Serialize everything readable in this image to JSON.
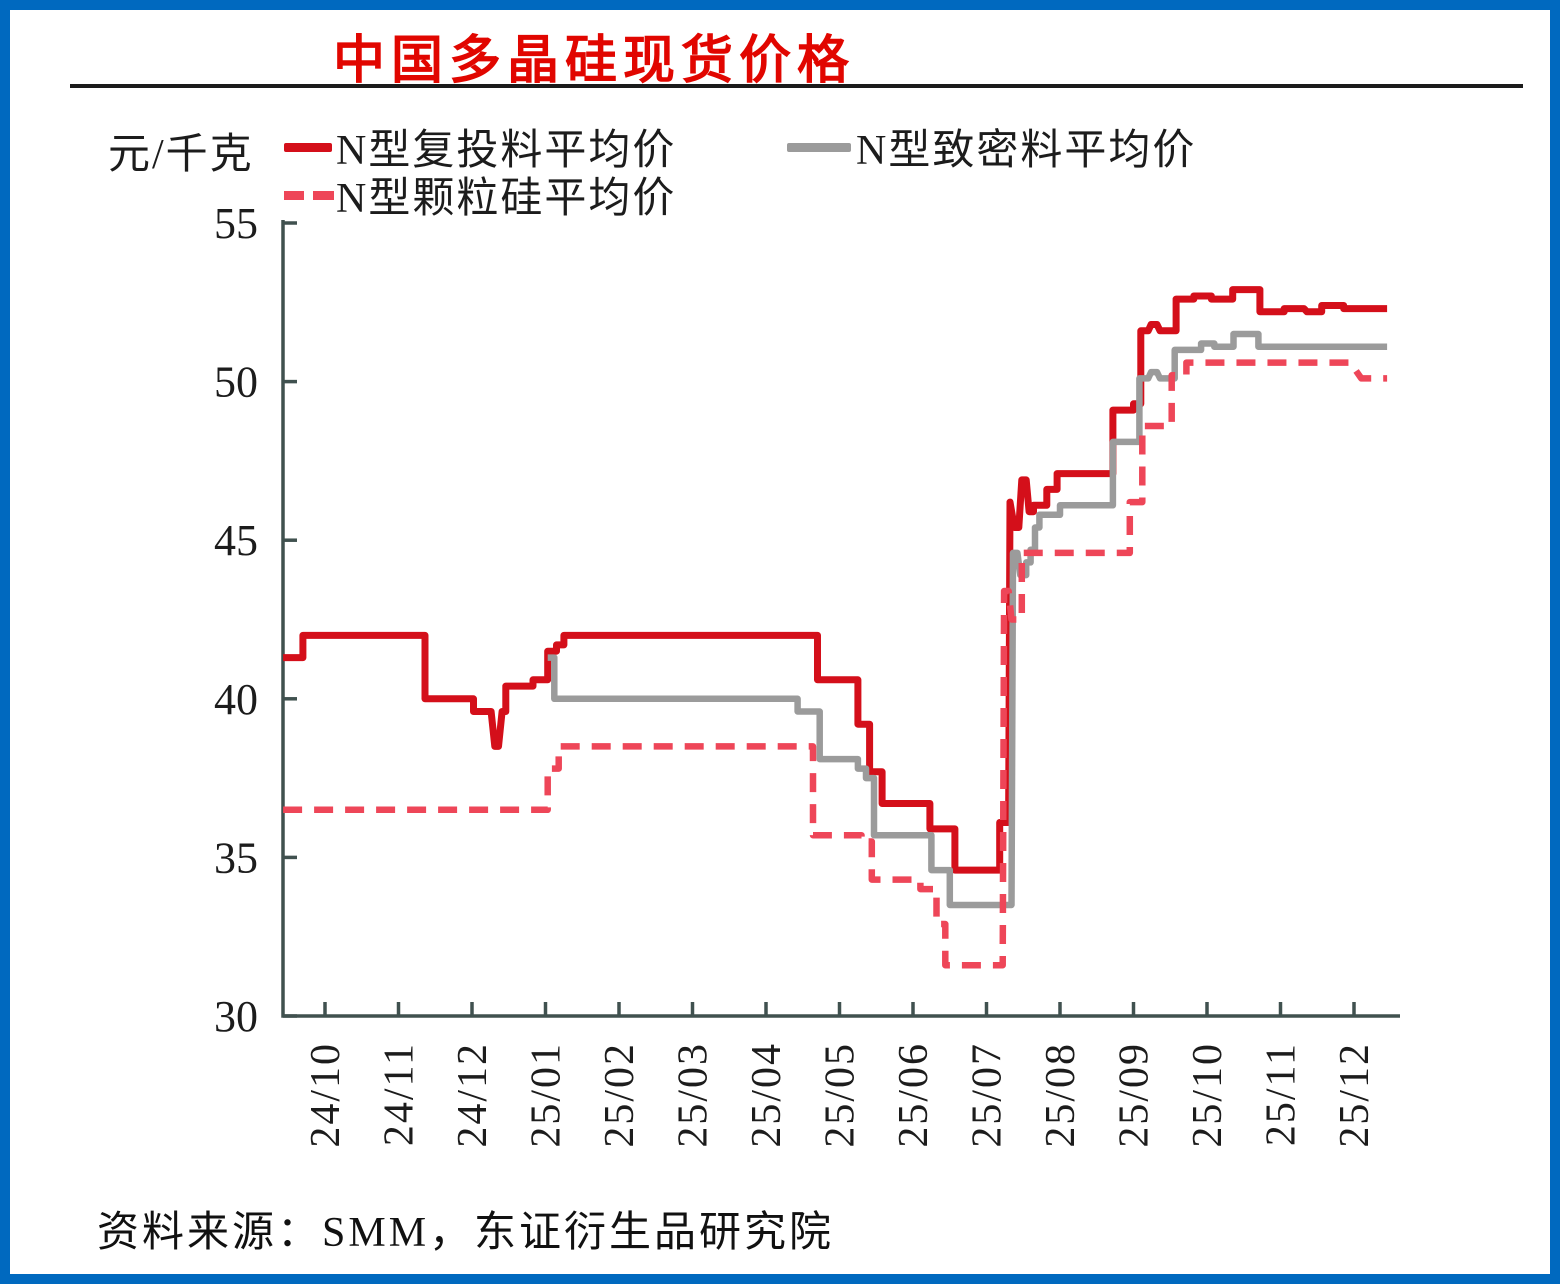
{
  "header": {
    "title": "中国多晶硅现货价格",
    "title_color": "#e10600"
  },
  "frame": {
    "border_color": "#0069bf"
  },
  "footer": {
    "source": "资料来源：SMM，东证衍生品研究院"
  },
  "chart_data": {
    "type": "line",
    "title": "中国多晶硅现货价格",
    "unit_label": "元/千克",
    "ylabel": "元/千克",
    "ylim": [
      30,
      55
    ],
    "yticks": [
      55,
      50,
      45,
      40,
      35,
      30
    ],
    "x_tick_labels": [
      "24/10",
      "24/11",
      "24/12",
      "25/01",
      "25/02",
      "25/03",
      "25/04",
      "25/05",
      "25/06",
      "25/07",
      "25/08",
      "25/09",
      "25/10",
      "25/11",
      "25/12"
    ],
    "grid": false,
    "legend_position": "top",
    "axis_color": "#40514f",
    "tick_text_color": "#1c1c1c",
    "legend": [
      {
        "label": "N型复投料平均价",
        "color": "#d40f1a",
        "dash": false
      },
      {
        "label": "N型致密料平均价",
        "color": "#9b9b9b",
        "dash": false
      },
      {
        "label": "N型颗粒硅平均价",
        "color": "#ee4658",
        "dash": true
      }
    ],
    "series": [
      {
        "name": "N型复投料平均价",
        "color": "#d40f1a",
        "width": 7,
        "dash": null,
        "points": [
          [
            -0.57,
            41.3
          ],
          [
            -0.3,
            41.3
          ],
          [
            -0.3,
            42.0
          ],
          [
            1.36,
            42.0
          ],
          [
            1.36,
            40.0
          ],
          [
            2.02,
            40.0
          ],
          [
            2.02,
            39.6
          ],
          [
            2.26,
            39.6
          ],
          [
            2.31,
            38.5
          ],
          [
            2.36,
            38.5
          ],
          [
            2.41,
            39.6
          ],
          [
            2.46,
            39.6
          ],
          [
            2.46,
            40.4
          ],
          [
            2.83,
            40.4
          ],
          [
            2.83,
            40.6
          ],
          [
            3.03,
            40.6
          ],
          [
            3.03,
            41.5
          ],
          [
            3.15,
            41.5
          ],
          [
            3.15,
            41.7
          ],
          [
            3.25,
            41.7
          ],
          [
            3.25,
            42.0
          ],
          [
            6.7,
            42.0
          ],
          [
            6.7,
            40.6
          ],
          [
            7.25,
            40.6
          ],
          [
            7.25,
            39.2
          ],
          [
            7.41,
            39.2
          ],
          [
            7.41,
            37.7
          ],
          [
            7.58,
            37.7
          ],
          [
            7.58,
            36.7
          ],
          [
            8.23,
            36.7
          ],
          [
            8.23,
            35.9
          ],
          [
            8.57,
            35.9
          ],
          [
            8.57,
            34.6
          ],
          [
            9.18,
            34.6
          ],
          [
            9.18,
            36.1
          ],
          [
            9.3,
            36.1
          ],
          [
            9.32,
            46.2
          ],
          [
            9.38,
            45.4
          ],
          [
            9.44,
            45.4
          ],
          [
            9.48,
            46.9
          ],
          [
            9.54,
            46.9
          ],
          [
            9.58,
            45.9
          ],
          [
            9.64,
            45.9
          ],
          [
            9.64,
            46.1
          ],
          [
            9.82,
            46.1
          ],
          [
            9.82,
            46.6
          ],
          [
            9.96,
            46.6
          ],
          [
            9.96,
            47.1
          ],
          [
            10.72,
            47.1
          ],
          [
            10.72,
            49.1
          ],
          [
            11.0,
            49.1
          ],
          [
            11.0,
            49.3
          ],
          [
            11.1,
            49.3
          ],
          [
            11.1,
            51.6
          ],
          [
            11.2,
            51.6
          ],
          [
            11.24,
            51.8
          ],
          [
            11.32,
            51.8
          ],
          [
            11.36,
            51.6
          ],
          [
            11.58,
            51.6
          ],
          [
            11.58,
            52.6
          ],
          [
            11.82,
            52.6
          ],
          [
            11.82,
            52.7
          ],
          [
            12.06,
            52.7
          ],
          [
            12.06,
            52.6
          ],
          [
            12.35,
            52.6
          ],
          [
            12.35,
            52.9
          ],
          [
            12.72,
            52.9
          ],
          [
            12.72,
            52.2
          ],
          [
            13.05,
            52.2
          ],
          [
            13.05,
            52.3
          ],
          [
            13.32,
            52.3
          ],
          [
            13.36,
            52.2
          ],
          [
            13.56,
            52.2
          ],
          [
            13.56,
            52.4
          ],
          [
            13.86,
            52.4
          ],
          [
            13.86,
            52.3
          ],
          [
            14.45,
            52.3
          ]
        ]
      },
      {
        "name": "N型致密料平均价",
        "color": "#9b9b9b",
        "width": 6.5,
        "dash": null,
        "points": [
          [
            3.03,
            41.3
          ],
          [
            3.12,
            41.3
          ],
          [
            3.12,
            40.0
          ],
          [
            6.43,
            40.0
          ],
          [
            6.43,
            39.6
          ],
          [
            6.73,
            39.6
          ],
          [
            6.73,
            38.1
          ],
          [
            7.25,
            38.1
          ],
          [
            7.25,
            37.8
          ],
          [
            7.36,
            37.8
          ],
          [
            7.36,
            37.5
          ],
          [
            7.47,
            37.5
          ],
          [
            7.47,
            35.7
          ],
          [
            8.25,
            35.7
          ],
          [
            8.25,
            34.6
          ],
          [
            8.5,
            34.6
          ],
          [
            8.5,
            33.5
          ],
          [
            9.34,
            33.5
          ],
          [
            9.36,
            44.6
          ],
          [
            9.42,
            44.6
          ],
          [
            9.46,
            43.9
          ],
          [
            9.54,
            43.9
          ],
          [
            9.54,
            44.3
          ],
          [
            9.6,
            44.3
          ],
          [
            9.6,
            44.7
          ],
          [
            9.66,
            44.7
          ],
          [
            9.66,
            45.4
          ],
          [
            9.72,
            45.4
          ],
          [
            9.72,
            45.8
          ],
          [
            10.0,
            45.8
          ],
          [
            10.0,
            46.1
          ],
          [
            10.72,
            46.1
          ],
          [
            10.72,
            48.1
          ],
          [
            11.08,
            48.1
          ],
          [
            11.08,
            50.1
          ],
          [
            11.2,
            50.1
          ],
          [
            11.24,
            50.3
          ],
          [
            11.32,
            50.3
          ],
          [
            11.36,
            50.1
          ],
          [
            11.56,
            50.1
          ],
          [
            11.56,
            51.0
          ],
          [
            11.92,
            51.0
          ],
          [
            11.92,
            51.2
          ],
          [
            12.1,
            51.2
          ],
          [
            12.1,
            51.1
          ],
          [
            12.36,
            51.1
          ],
          [
            12.36,
            51.5
          ],
          [
            12.7,
            51.5
          ],
          [
            12.7,
            51.1
          ],
          [
            14.45,
            51.1
          ]
        ]
      },
      {
        "name": "N型颗粒硅平均价",
        "color": "#ee4658",
        "width": 6.5,
        "dash": "19 12",
        "points": [
          [
            -0.57,
            36.5
          ],
          [
            3.03,
            36.5
          ],
          [
            3.03,
            37.8
          ],
          [
            3.18,
            37.8
          ],
          [
            3.18,
            38.5
          ],
          [
            6.64,
            38.5
          ],
          [
            6.64,
            35.7
          ],
          [
            7.3,
            35.7
          ],
          [
            7.3,
            35.5
          ],
          [
            7.44,
            35.5
          ],
          [
            7.44,
            34.3
          ],
          [
            8.1,
            34.3
          ],
          [
            8.1,
            34.0
          ],
          [
            8.32,
            34.0
          ],
          [
            8.32,
            32.9
          ],
          [
            8.44,
            32.9
          ],
          [
            8.44,
            31.6
          ],
          [
            9.22,
            31.6
          ],
          [
            9.24,
            43.4
          ],
          [
            9.3,
            43.4
          ],
          [
            9.34,
            42.5
          ],
          [
            9.48,
            42.5
          ],
          [
            9.48,
            44.6
          ],
          [
            10.95,
            44.6
          ],
          [
            10.95,
            46.2
          ],
          [
            11.12,
            46.2
          ],
          [
            11.12,
            48.6
          ],
          [
            11.52,
            48.6
          ],
          [
            11.52,
            50.2
          ],
          [
            11.72,
            50.2
          ],
          [
            11.72,
            50.6
          ],
          [
            13.95,
            50.6
          ],
          [
            14.1,
            50.1
          ],
          [
            14.45,
            50.1
          ]
        ]
      }
    ]
  }
}
